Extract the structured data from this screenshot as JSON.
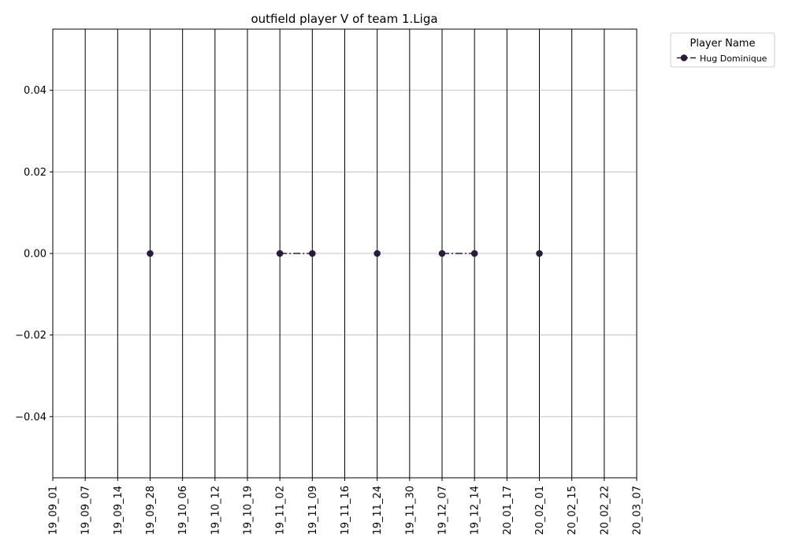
{
  "chart_data": {
    "type": "line",
    "title": "outfield player V of team 1.Liga",
    "xlabel": "",
    "ylabel": "",
    "categories": [
      "19_09_01",
      "19_09_07",
      "19_09_14",
      "19_09_28",
      "19_10_06",
      "19_10_12",
      "19_10_19",
      "19_11_02",
      "19_11_09",
      "19_11_16",
      "19_11_24",
      "19_11_30",
      "19_12_07",
      "19_12_14",
      "20_01_17",
      "20_02_01",
      "20_02_15",
      "20_02_22",
      "20_03_07"
    ],
    "yticks": [
      "0.04",
      "0.02",
      "0.00",
      "−0.02",
      "−0.04"
    ],
    "ytick_values": [
      0.04,
      0.02,
      0.0,
      -0.02,
      -0.04
    ],
    "ylim": [
      -0.055,
      0.055
    ],
    "grid": "horizontal",
    "vertical_lines_at_categories": true,
    "series": [
      {
        "name": "Hug Dominique",
        "color": "#2e1a3b",
        "line_style": "dash-dot",
        "marker": "circle",
        "values": [
          null,
          null,
          null,
          0.0,
          null,
          null,
          null,
          0.0,
          0.0,
          null,
          0.0,
          null,
          0.0,
          0.0,
          null,
          0.0,
          null,
          null,
          null
        ]
      }
    ],
    "legend": {
      "title": "Player Name",
      "placement": "outside-top-right"
    }
  }
}
